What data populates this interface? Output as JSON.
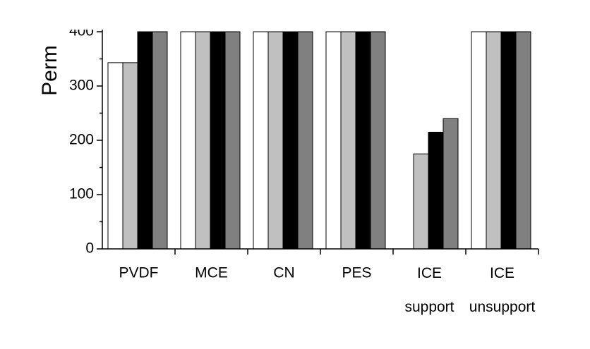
{
  "chart_data": {
    "type": "bar",
    "y_label": "Perm",
    "categories": [
      "PVDF",
      "MCE",
      "CN",
      "PES",
      "ICE support",
      "ICE unsupport"
    ],
    "series": [
      {
        "color": "#ffffff",
        "values": [
          343,
          400,
          400,
          400,
          0,
          400
        ]
      },
      {
        "color": "#c0c0c0",
        "values": [
          343,
          400,
          400,
          400,
          175,
          400
        ]
      },
      {
        "color": "#000000",
        "values": [
          400,
          400,
          400,
          400,
          215,
          400
        ]
      },
      {
        "color": "#808080",
        "values": [
          400,
          400,
          400,
          400,
          240,
          400
        ]
      }
    ],
    "ylim": [
      0,
      400
    ],
    "yticks": [
      0,
      100,
      200,
      300,
      400
    ]
  }
}
